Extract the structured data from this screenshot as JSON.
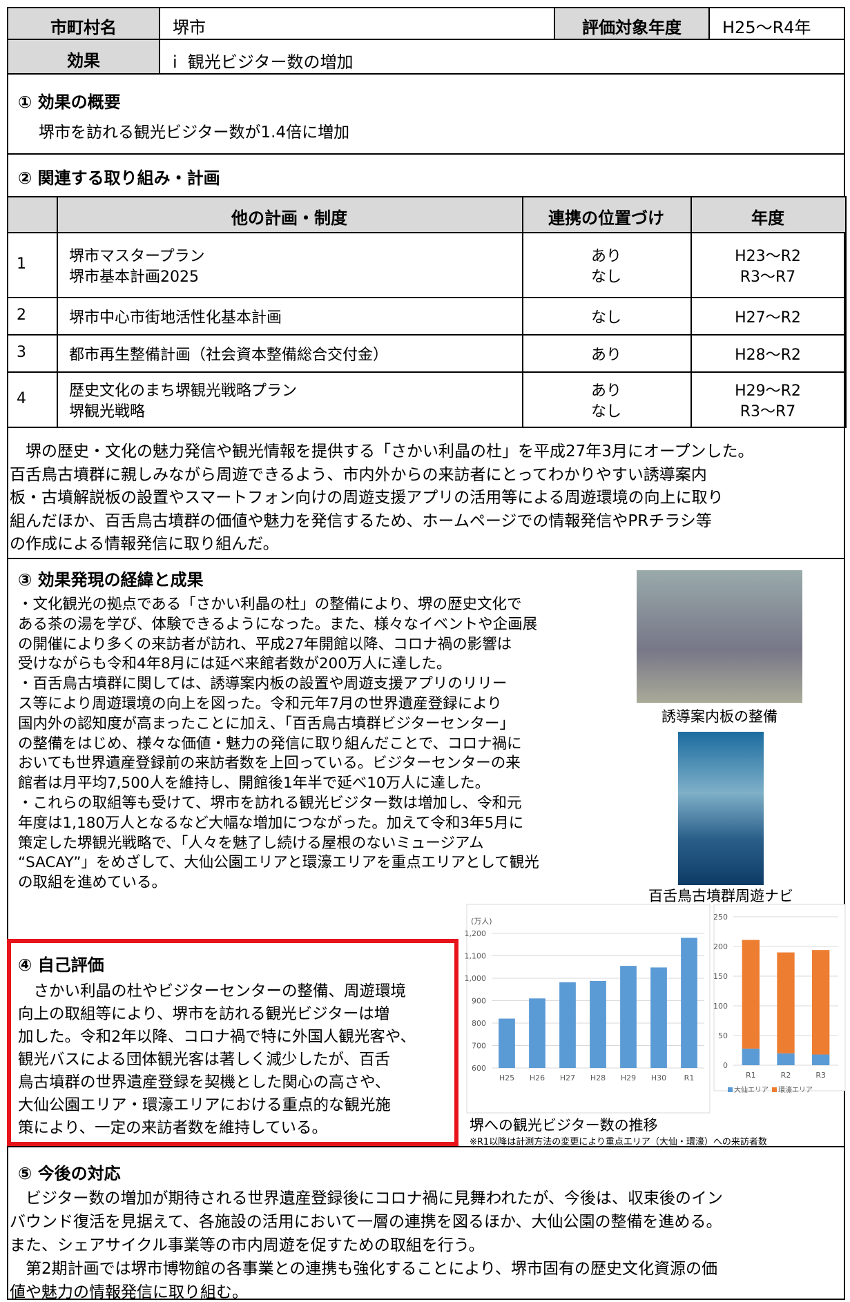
{
  "header": {
    "label_city": "市町村名",
    "city": "堺市",
    "label_period": "評価対象年度",
    "period": "H25〜R4年",
    "label_effect": "効果",
    "effect": "ⅰ  観光ビジター数の増加"
  },
  "s1": {
    "title": "① 効果の概要",
    "text": "堺市を訪れる観光ビジター数が1.4倍に増加"
  },
  "s2": {
    "title": "② 関連する取り組み・計画",
    "table": {
      "headers": [
        "他の計画・制度",
        "連携の位置づけ",
        "年度"
      ],
      "rows": [
        {
          "no": "1",
          "plans": [
            "堺市マスタープラン",
            "堺市基本計画2025"
          ],
          "positions": [
            "あり",
            "なし"
          ],
          "years": [
            "H23〜R2",
            "R3〜R7"
          ]
        },
        {
          "no": "2",
          "plans": [
            "堺市中心市街地活性化基本計画"
          ],
          "positions": [
            "なし"
          ],
          "years": [
            "H27〜R2"
          ]
        },
        {
          "no": "3",
          "plans": [
            "都市再生整備計画（社会資本整備総合交付金）"
          ],
          "positions": [
            "あり"
          ],
          "years": [
            "H28〜R2"
          ]
        },
        {
          "no": "4",
          "plans": [
            "歴史文化のまち堺観光戦略プラン",
            "堺観光戦略"
          ],
          "positions": [
            "あり",
            "なし"
          ],
          "years": [
            "H29〜R2",
            "R3〜R7"
          ]
        }
      ]
    },
    "lines": [
      "　堺の歴史・文化の魅力発信や観光情報を提供する「さかい利晶の杜」を平成27年3月にオープンした。",
      "百舌鳥古墳群に親しみながら周遊できるよう、市内外からの来訪者にとってわかりやすい誘導案内",
      "板・古墳解説板の設置やスマートフォン向けの周遊支援アプリの活用等による周遊環境の向上に取り",
      "組んだほか、百舌鳥古墳群の価値や魅力を発信するため、ホームページでの情報発信やPRチラシ等",
      "の作成による情報発信に取り組んだ。"
    ]
  },
  "s3": {
    "title": "③ 効果発現の経緯と成果",
    "lines": [
      "・文化観光の拠点である「さかい利晶の杜」の整備により、堺の歴史文化で",
      "ある茶の湯を学び、体験できるようになった。また、様々なイベントや企画展",
      "の開催により多くの来訪者が訪れ、平成27年開館以降、コロナ禍の影響は",
      "受けながらも令和4年8月には延べ来館者数が200万人に達した。",
      "・百舌鳥古墳群に関しては、誘導案内板の設置や周遊支援アプリのリリー",
      "ス等により周遊環境の向上を図った。令和元年7月の世界遺産登録により",
      "国内外の認知度が高まったことに加え、「百舌鳥古墳群ビジターセンター」",
      "の整備をはじめ、様々な価値・魅力の発信に取り組んだことで、コロナ禍に",
      "おいても世界遺産登録前の来訪者数を上回っている。ビジターセンターの来",
      "館者は月平均7,500人を維持し、開館後1年半で延べ10万人に達した。",
      "・これらの取組等も受けて、堺市を訪れる観光ビジター数は増加し、令和元",
      "年度は1,180万人となるなど大幅な増加につながった。加えて令和3年5月に",
      "策定した堺観光戦略で、「人々を魅了し続ける屋根のないミュージアム",
      "“SACAY”」をめざして、大仙公園エリアと環濠エリアを重点エリアとして観光",
      "の取組を進めている。"
    ],
    "photos": [
      "誘導案内板の整備",
      "百舌鳥古墳群周遊ナビ"
    ],
    "chart_caption": "堺への観光ビジター数の推移",
    "chart_note": "※R1以降は計測方法の変更により重点エリア（大仙・環濠）への来訪者数"
  },
  "chart_data": [
    {
      "type": "bar",
      "ylabel": "(万人)",
      "categories": [
        "H25",
        "H26",
        "H27",
        "H28",
        "H29",
        "H30",
        "R1"
      ],
      "values": [
        820,
        910,
        982,
        988,
        1055,
        1048,
        1180
      ],
      "color": "#5b9bd5",
      "ylim": [
        600,
        1200
      ],
      "yticks": [
        600,
        700,
        800,
        900,
        {
          "value": 1000,
          "label": "1,000"
        },
        {
          "value": 1100,
          "label": "1,100"
        },
        {
          "value": 1200,
          "label": "1,200"
        }
      ],
      "grid": true
    },
    {
      "type": "bar",
      "stacked": true,
      "categories": [
        "R1",
        "R2",
        "R3"
      ],
      "series": [
        {
          "name": "大仙エリア",
          "color": "#5b9bd5",
          "values": [
            28,
            20,
            18
          ]
        },
        {
          "name": "環濠エリア",
          "color": "#ed7d31",
          "values": [
            183,
            170,
            176
          ]
        }
      ],
      "ylim": [
        0,
        250
      ],
      "yticks": [
        0,
        50,
        100,
        150,
        200,
        250
      ],
      "grid": true,
      "legend": "bottom"
    }
  ],
  "s4": {
    "title": "④ 自己評価",
    "lines": [
      "　さかい利晶の杜やビジターセンターの整備、周遊環境",
      "向上の取組等により、堺市を訪れる観光ビジターは増",
      "加した。令和2年以降、コロナ禍で特に外国人観光客や、",
      "観光バスによる団体観光客は著しく減少したが、百舌",
      "鳥古墳群の世界遺産登録を契機とした関心の高さや、",
      "大仙公園エリア・環濠エリアにおける重点的な観光施",
      "策により、一定の来訪者数を維持している。"
    ]
  },
  "s5": {
    "title": "⑤ 今後の対応",
    "lines": [
      "　ビジター数の増加が期待される世界遺産登録後にコロナ禍に見舞われたが、今後は、収束後のイン",
      "バウンド復活を見据えて、各施設の活用において一層の連携を図るほか、大仙公園の整備を進める。",
      "また、シェアサイクル事業等の市内周遊を促すための取組を行う。",
      "　第2期計画では堺市博物館の各事業との連携も強化することにより、堺市固有の歴史文化資源の価",
      "値や魅力の情報発信に取り組む。"
    ]
  }
}
